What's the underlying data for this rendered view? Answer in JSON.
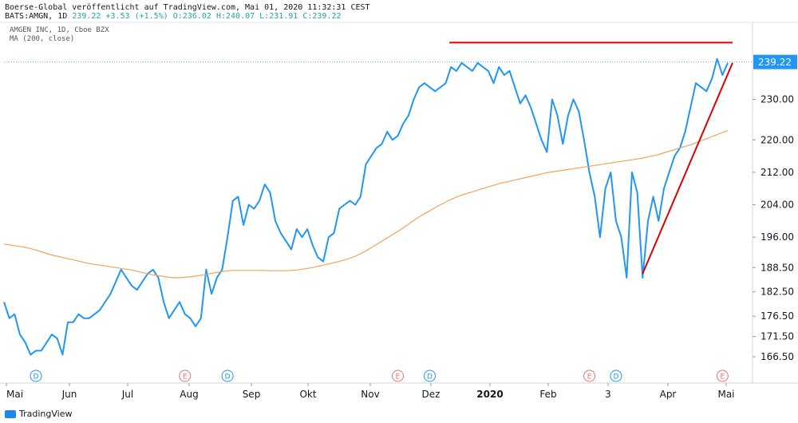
{
  "header": {
    "line1": "Boerse-Global veröffentlicht auf TradingView.com, Mai 01, 2020 11:32:31 CEST",
    "symbol": "BATS:AMGN, 1D",
    "price": "239.22",
    "change": "+3.53 (+1.5%)",
    "ohlc": "O:236.02 H:240.07 L:231.91 C:239.22"
  },
  "legend": {
    "title": "AMGEN INC, 1D, Cboe BZX",
    "ma": "MA (200, close)"
  },
  "footer": {
    "brand": "TradingView"
  },
  "colors": {
    "price_line": "#2196f3",
    "ma_line": "#f5a15c",
    "trend_line": "#dd0000",
    "price_tag_bg": "#2196f3",
    "dividend_marker": "#2196f3",
    "earnings_marker": "#e57373",
    "grid": "#f0f3fa"
  },
  "chart_data": {
    "type": "line",
    "title": "AMGEN INC, 1D, Cboe BZX",
    "ylim": [
      160,
      249
    ],
    "y_ticks": [
      "166.50",
      "171.50",
      "176.50",
      "182.50",
      "188.50",
      "196.00",
      "204.00",
      "212.00",
      "220.00",
      "230.00",
      "239.22"
    ],
    "x_labels": [
      "Mai",
      "Jun",
      "Jul",
      "Aug",
      "Sep",
      "Okt",
      "Nov",
      "Dez",
      "2020",
      "Feb",
      "3",
      "Apr",
      "Mai"
    ],
    "x_label_bold": [
      "2020"
    ],
    "last_price": 239.22,
    "series": [
      {
        "name": "AMGN",
        "values": [
          180,
          176,
          177,
          172,
          170,
          167,
          168,
          168,
          170,
          172,
          171,
          167,
          175,
          175,
          177,
          176,
          176,
          177,
          178,
          180,
          182,
          185,
          188,
          186,
          184,
          183,
          185,
          187,
          188,
          186,
          180,
          176,
          178,
          180,
          177,
          176,
          174,
          176,
          188,
          182,
          186,
          188,
          196,
          205,
          206,
          199,
          204,
          203,
          205,
          209,
          207,
          200,
          197,
          195,
          193,
          198,
          196,
          198,
          194,
          191,
          190,
          196,
          197,
          203,
          204,
          205,
          204,
          206,
          214,
          216,
          218,
          219,
          222,
          220,
          221,
          224,
          226,
          230,
          233,
          234,
          233,
          232,
          233,
          234,
          238,
          237,
          239,
          238,
          237,
          239,
          238,
          237,
          234,
          238,
          236,
          237,
          233,
          229,
          231,
          228,
          224,
          220,
          217,
          230,
          226,
          219,
          226,
          230,
          227,
          220,
          212,
          206,
          196,
          208,
          212,
          200,
          196,
          186,
          212,
          207,
          186,
          200,
          206,
          200,
          208,
          212,
          216,
          218,
          222,
          228,
          234,
          233,
          232,
          235,
          240,
          236,
          239
        ]
      },
      {
        "name": "MA (200, close)",
        "values": [
          194.3,
          194.1,
          193.9,
          193.7,
          193.5,
          193.2,
          192.8,
          192.4,
          192,
          191.6,
          191.3,
          191,
          190.7,
          190.4,
          190.1,
          189.8,
          189.5,
          189.3,
          189.1,
          188.9,
          188.7,
          188.5,
          188.3,
          188.1,
          187.9,
          187.6,
          187.3,
          187,
          186.7,
          186.5,
          186.3,
          186.1,
          186,
          186,
          186.1,
          186.2,
          186.4,
          186.6,
          186.8,
          187.1,
          187.3,
          187.5,
          187.7,
          187.8,
          187.8,
          187.8,
          187.8,
          187.8,
          187.8,
          187.8,
          187.7,
          187.7,
          187.7,
          187.7,
          187.8,
          187.9,
          188.1,
          188.3,
          188.5,
          188.8,
          189.1,
          189.4,
          189.7,
          190,
          190.4,
          190.8,
          191.3,
          191.9,
          192.6,
          193.4,
          194.2,
          195,
          195.8,
          196.6,
          197.4,
          198.3,
          199.2,
          200.1,
          201,
          201.8,
          202.5,
          203.3,
          204,
          204.7,
          205.3,
          205.9,
          206.4,
          206.8,
          207.2,
          207.6,
          208,
          208.4,
          208.8,
          209.2,
          209.5,
          209.8,
          210.1,
          210.4,
          210.7,
          211,
          211.3,
          211.6,
          211.9,
          212.1,
          212.3,
          212.5,
          212.7,
          212.9,
          213.1,
          213.3,
          213.5,
          213.7,
          213.9,
          214.1,
          214.3,
          214.5,
          214.7,
          214.9,
          215.1,
          215.3,
          215.5,
          215.8,
          216.1,
          216.4,
          216.8,
          217.2,
          217.6,
          218,
          218.4,
          218.8,
          219.3,
          219.8,
          220.3,
          220.8,
          221.3,
          221.8,
          222.3
        ]
      }
    ],
    "annotations": [
      {
        "type": "horizontal_segment",
        "y": 244,
        "x_from_index": 84,
        "x_to_index": 136
      },
      {
        "type": "trend_segment",
        "y_from": 187,
        "y_to": 239,
        "from_index": 120,
        "to_index": 136
      }
    ],
    "events": [
      {
        "type": "D",
        "index": 6
      },
      {
        "type": "E",
        "index": 34
      },
      {
        "type": "D",
        "index": 42
      },
      {
        "type": "E",
        "index": 74
      },
      {
        "type": "D",
        "index": 80
      },
      {
        "type": "E",
        "index": 110
      },
      {
        "type": "D",
        "index": 115
      },
      {
        "type": "E",
        "index": 135
      }
    ]
  }
}
